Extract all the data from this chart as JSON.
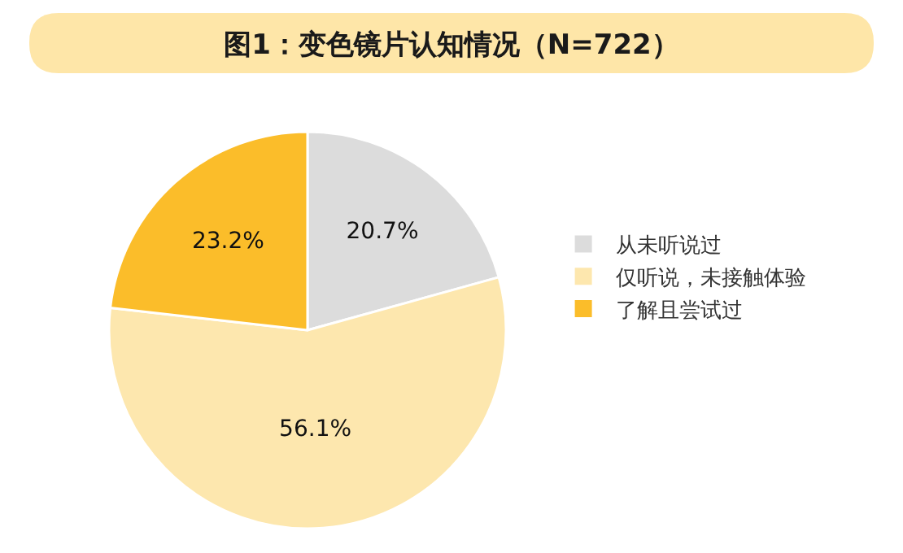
{
  "chart_data": {
    "type": "pie",
    "title": "图1：变色镜片认知情况（N=722）",
    "categories": [
      "从未听说过",
      "仅听说，未接触体验",
      "了解且尝试过"
    ],
    "values": [
      20.7,
      56.1,
      23.2
    ],
    "colors": [
      "#dcdcdc",
      "#fde7ae",
      "#fbbd2a"
    ],
    "value_labels": [
      "20.7%",
      "56.1%",
      "23.2%"
    ],
    "legend": "right"
  }
}
